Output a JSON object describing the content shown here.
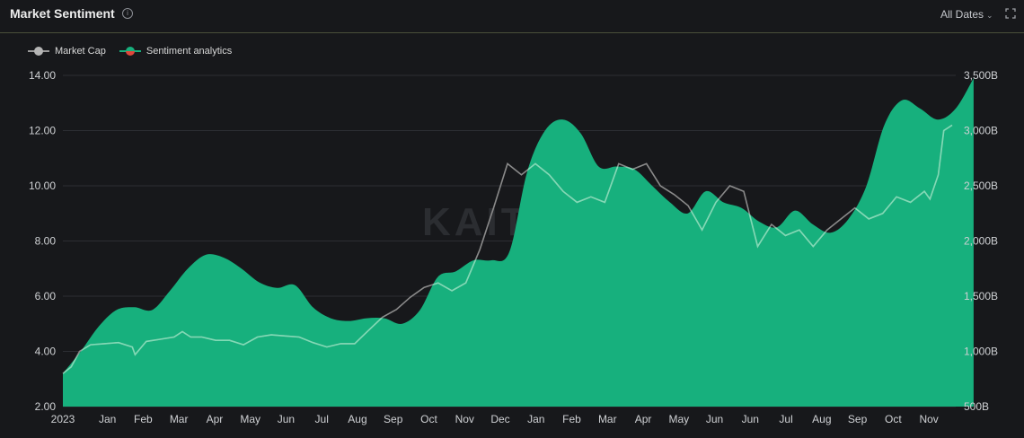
{
  "header": {
    "title": "Market Sentiment",
    "info_icon": "info-circle-icon",
    "date_filter": "All Dates",
    "dropdown_icon": "chevron-down-icon",
    "expand_icon": "expand-icon"
  },
  "watermark": "KAITO",
  "colors": {
    "background": "#17181b",
    "area": "#17b07d",
    "market_cap_over": "#7fdcb6",
    "market_cap_bg": "#8a8a8a",
    "grid": "#2c2e33",
    "header_border": "#4a4f3a"
  },
  "chart_data": {
    "type": "area",
    "legend": {
      "position": "top-left"
    },
    "grid": true,
    "x_ticks": [
      "2023",
      "Jan",
      "Feb",
      "Mar",
      "Apr",
      "May",
      "Jun",
      "Jul",
      "Aug",
      "Sep",
      "Oct",
      "Nov",
      "Dec",
      "Jan",
      "Feb",
      "Mar",
      "Apr",
      "May",
      "Jun",
      "Jun",
      "Jul",
      "Aug",
      "Sep",
      "Oct",
      "Nov"
    ],
    "y_left": {
      "ticks": [
        "2.00",
        "4.00",
        "6.00",
        "8.00",
        "10.00",
        "12.00",
        "14.00"
      ],
      "min": 2,
      "max": 14
    },
    "y_right": {
      "ticks": [
        "500B",
        "1,000B",
        "1,500B",
        "2,000B",
        "2,500B",
        "3,000B",
        "3,500B"
      ],
      "min": 500,
      "max": 3500,
      "unit": "B"
    },
    "series": [
      {
        "name": "Sentiment analytics",
        "axis": "left",
        "points": [
          [
            0,
            3.2
          ],
          [
            0.5,
            4.0
          ],
          [
            1,
            4.9
          ],
          [
            1.5,
            5.5
          ],
          [
            2,
            5.6
          ],
          [
            2.5,
            5.5
          ],
          [
            3,
            6.2
          ],
          [
            3.5,
            7.0
          ],
          [
            4,
            7.5
          ],
          [
            4.5,
            7.4
          ],
          [
            5,
            7.0
          ],
          [
            5.5,
            6.5
          ],
          [
            6,
            6.3
          ],
          [
            6.5,
            6.4
          ],
          [
            7,
            5.6
          ],
          [
            7.5,
            5.2
          ],
          [
            8,
            5.1
          ],
          [
            8.5,
            5.2
          ],
          [
            9,
            5.2
          ],
          [
            9.5,
            5.0
          ],
          [
            10,
            5.5
          ],
          [
            10.5,
            6.7
          ],
          [
            11,
            6.9
          ],
          [
            11.5,
            7.3
          ],
          [
            12,
            7.3
          ],
          [
            12.5,
            7.6
          ],
          [
            13,
            10.5
          ],
          [
            13.5,
            12.0
          ],
          [
            14,
            12.4
          ],
          [
            14.5,
            11.9
          ],
          [
            15,
            10.7
          ],
          [
            15.5,
            10.7
          ],
          [
            16,
            10.6
          ],
          [
            16.5,
            10.0
          ],
          [
            17,
            9.4
          ],
          [
            17.5,
            9.0
          ],
          [
            18,
            9.8
          ],
          [
            18.5,
            9.4
          ],
          [
            19,
            9.2
          ],
          [
            19.5,
            8.7
          ],
          [
            20,
            8.5
          ],
          [
            20.5,
            9.1
          ],
          [
            21,
            8.6
          ],
          [
            21.5,
            8.3
          ],
          [
            22,
            8.8
          ],
          [
            22.5,
            10.0
          ],
          [
            23,
            12.2
          ],
          [
            23.5,
            13.1
          ],
          [
            24,
            12.8
          ],
          [
            24.5,
            12.4
          ],
          [
            25,
            12.8
          ],
          [
            25.5,
            13.9
          ]
        ]
      },
      {
        "name": "Market Cap",
        "axis": "right",
        "points": [
          [
            0,
            800
          ],
          [
            0.3,
            860
          ],
          [
            0.6,
            1000
          ],
          [
            1,
            1060
          ],
          [
            1.5,
            1070
          ],
          [
            2,
            1080
          ],
          [
            2.5,
            1040
          ],
          [
            2.6,
            970
          ],
          [
            3,
            1090
          ],
          [
            3.5,
            1110
          ],
          [
            4,
            1130
          ],
          [
            4.3,
            1180
          ],
          [
            4.6,
            1130
          ],
          [
            5,
            1130
          ],
          [
            5.5,
            1100
          ],
          [
            6,
            1100
          ],
          [
            6.5,
            1060
          ],
          [
            7,
            1130
          ],
          [
            7.5,
            1150
          ],
          [
            8,
            1140
          ],
          [
            8.5,
            1130
          ],
          [
            9,
            1080
          ],
          [
            9.5,
            1040
          ],
          [
            10,
            1070
          ],
          [
            10.5,
            1070
          ],
          [
            11,
            1190
          ],
          [
            11.5,
            1310
          ],
          [
            12,
            1380
          ],
          [
            12.5,
            1490
          ],
          [
            13,
            1580
          ],
          [
            13.5,
            1620
          ],
          [
            14,
            1550
          ],
          [
            14.5,
            1620
          ],
          [
            15,
            1920
          ],
          [
            15.5,
            2300
          ],
          [
            16,
            2700
          ],
          [
            16.5,
            2600
          ],
          [
            17,
            2700
          ],
          [
            17.5,
            2600
          ],
          [
            18,
            2450
          ],
          [
            18.5,
            2350
          ],
          [
            19,
            2400
          ],
          [
            19.5,
            2350
          ],
          [
            20,
            2700
          ],
          [
            20.5,
            2650
          ],
          [
            21,
            2700
          ],
          [
            21.5,
            2500
          ],
          [
            22,
            2420
          ],
          [
            22.5,
            2320
          ],
          [
            23,
            2100
          ],
          [
            23.5,
            2350
          ],
          [
            24,
            2500
          ],
          [
            24.5,
            2450
          ],
          [
            25,
            1950
          ],
          [
            25.5,
            2150
          ],
          [
            26,
            2050
          ],
          [
            26.5,
            2100
          ],
          [
            27,
            1950
          ],
          [
            27.5,
            2100
          ],
          [
            28,
            2200
          ],
          [
            28.5,
            2300
          ],
          [
            29,
            2200
          ],
          [
            29.5,
            2250
          ],
          [
            30,
            2400
          ],
          [
            30.5,
            2350
          ],
          [
            31,
            2450
          ],
          [
            31.2,
            2380
          ],
          [
            31.5,
            2600
          ],
          [
            31.7,
            3000
          ],
          [
            32,
            3050
          ]
        ]
      }
    ]
  }
}
